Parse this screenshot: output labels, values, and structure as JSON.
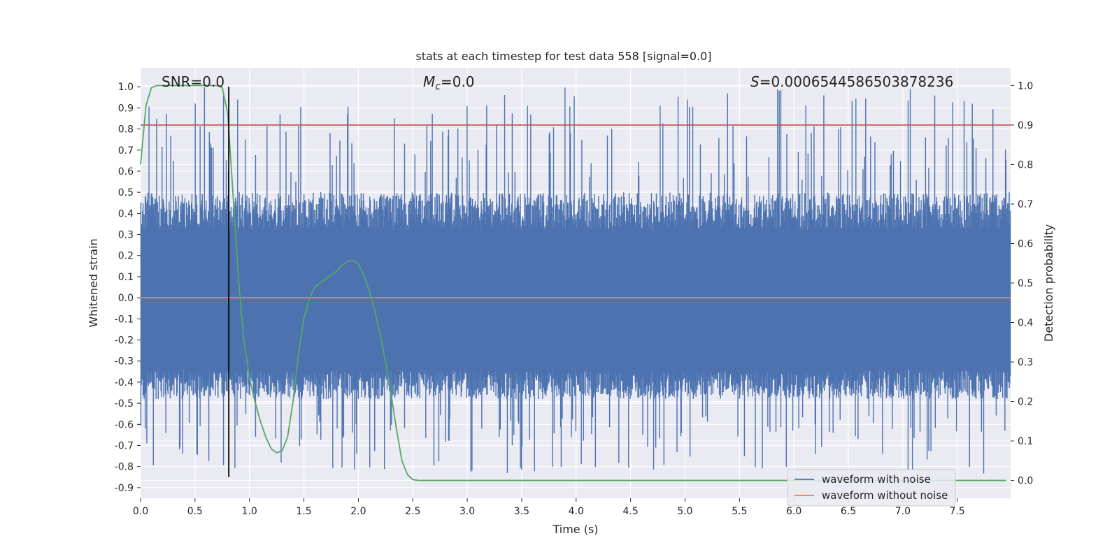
{
  "chart_data": {
    "type": "line",
    "title": "stats at each timestep for test data 558 [signal=0.0]",
    "xlabel": "Time (s)",
    "ylabel_left": "Whitened strain",
    "ylabel_right": "Detection probability",
    "xlim": [
      0.0,
      7.99
    ],
    "ylim_left": [
      -0.95,
      1.09
    ],
    "ylim_right": [
      -0.045,
      1.045
    ],
    "x_ticks": [
      "0.0",
      "0.5",
      "1.0",
      "1.5",
      "2.0",
      "2.5",
      "3.0",
      "3.5",
      "4.0",
      "4.5",
      "5.0",
      "5.5",
      "6.0",
      "6.5",
      "7.0",
      "7.5"
    ],
    "y_left_ticks": [
      "1.0",
      "0.9",
      "0.8",
      "0.7",
      "0.6",
      "0.5",
      "0.4",
      "0.3",
      "0.2",
      "0.1",
      "0.0",
      "-0.1",
      "-0.2",
      "-0.3",
      "-0.4",
      "-0.5",
      "-0.6",
      "-0.7",
      "-0.8",
      "-0.9"
    ],
    "y_right_ticks": [
      "1.0",
      "0.9",
      "0.8",
      "0.7",
      "0.6",
      "0.5",
      "0.4",
      "0.3",
      "0.2",
      "0.1",
      "0.0"
    ],
    "annotations": {
      "snr": "SNR=0.0",
      "mc": "=0.0",
      "mc_symbol": "M",
      "mc_sub": "c",
      "s": "=0.0006544586503878236",
      "s_symbol": "S"
    },
    "grid": true,
    "legend_position": "lower-right",
    "series": [
      {
        "name": "waveform with noise",
        "color": "#4c72b0",
        "axis": "left",
        "kind": "noise",
        "approx_envelope": [
          -0.84,
          1.0
        ]
      },
      {
        "name": "waveform without noise",
        "color": "#dd8452",
        "axis": "left",
        "x": [
          0.0,
          7.99
        ],
        "values": [
          0.0,
          0.0
        ]
      },
      {
        "name": "",
        "color": "#55a868",
        "axis": "right",
        "x": [
          0.0,
          0.05,
          0.1,
          0.15,
          0.2,
          0.25,
          0.3,
          0.4,
          0.5,
          0.6,
          0.7,
          0.75,
          0.8,
          0.85,
          0.9,
          0.95,
          1.0,
          1.05,
          1.1,
          1.15,
          1.2,
          1.25,
          1.3,
          1.35,
          1.4,
          1.45,
          1.5,
          1.55,
          1.6,
          1.65,
          1.7,
          1.75,
          1.8,
          1.85,
          1.9,
          1.95,
          2.0,
          2.05,
          2.1,
          2.15,
          2.2,
          2.25,
          2.3,
          2.35,
          2.4,
          2.45,
          2.5,
          2.55,
          2.6,
          3.0,
          4.0,
          5.0,
          6.0,
          7.0,
          7.95
        ],
        "values": [
          0.8,
          0.95,
          0.995,
          1.0,
          1.0,
          1.0,
          1.0,
          1.0,
          1.0,
          1.0,
          1.0,
          0.995,
          0.93,
          0.72,
          0.51,
          0.35,
          0.26,
          0.2,
          0.15,
          0.11,
          0.08,
          0.07,
          0.075,
          0.11,
          0.2,
          0.32,
          0.41,
          0.46,
          0.49,
          0.5,
          0.51,
          0.52,
          0.53,
          0.545,
          0.555,
          0.557,
          0.548,
          0.52,
          0.48,
          0.43,
          0.37,
          0.3,
          0.22,
          0.13,
          0.05,
          0.015,
          0.002,
          0.0,
          0.0,
          0.0,
          0.0,
          0.0,
          0.0,
          0.0,
          0.0
        ]
      }
    ],
    "hlines": [
      {
        "axis": "right",
        "value": 0.9,
        "color": "#c44e52"
      }
    ],
    "vlines": [
      {
        "x": 0.81,
        "y_from": -0.85,
        "y_to": 1.0,
        "color": "#000000"
      }
    ]
  }
}
